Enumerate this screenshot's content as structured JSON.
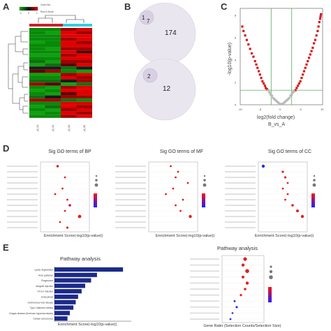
{
  "panels": {
    "A": "A",
    "B": "B",
    "C": "C",
    "D": "D",
    "E": "E"
  },
  "heatmap": {
    "legend_title": "Color Key",
    "legend_sub": "Row Z-Score",
    "legend_ticks": [
      "-1",
      "0",
      "1"
    ],
    "columns": [
      "p3_A1",
      "p3_A2",
      "p3_B1",
      "p3_B2"
    ]
  },
  "venn": {
    "top": {
      "a": "1",
      "b": "7",
      "c": "174"
    },
    "bottom": {
      "a": "2",
      "b": "12"
    }
  },
  "volcano": {
    "ylabel": "-log10(p-value)",
    "xlabel": "log2(fold change)",
    "subtitle": "B_vs_A",
    "xticks": [
      "-10",
      "-5",
      "0",
      "5",
      "10"
    ],
    "yticks": [
      "0",
      "2",
      "4",
      "6",
      "8"
    ]
  },
  "go": {
    "bp_title": "Sig GO terms of BP",
    "mf_title": "Sig GO terms of MF",
    "cc_title": "Sig GO terms of CC",
    "xlabel": "Enrichment Score(-log10(p-value))"
  },
  "pathway": {
    "left_title": "Pathway analysis",
    "right_title": "Pathway analysis",
    "left_xlabel": "Enrichment Score(-log10(p-value))",
    "right_xlabel": "Gene Ratio (Selection Counts/Selection Size)"
  },
  "colors": {
    "red": "#d7191c",
    "navy": "#1b2a8a",
    "grey": "#b8b8b8",
    "green": "#3aa04a",
    "cyan": "#2fd0e0",
    "lavender": "#eae6f0"
  },
  "chart_data": [
    {
      "type": "scatter",
      "title": "B_vs_A",
      "xlabel": "log2(fold change)",
      "ylabel": "-log10(p-value)",
      "xlim": [
        -10,
        10
      ],
      "ylim": [
        0,
        8
      ],
      "series": [
        {
          "x": [
            -9.5,
            -9.2,
            -8.8,
            -8.4,
            -8.0,
            -7.6,
            -7.2,
            -6.8,
            -6.4,
            -6.1,
            -5.8,
            -5.5,
            -5.2,
            -4.9,
            -4.6,
            -4.3,
            -4.0,
            -3.8,
            -3.5
          ],
          "y": [
            7.0,
            6.6,
            6.2,
            5.8,
            5.4,
            5.0,
            4.6,
            4.3,
            3.9,
            3.6,
            3.3,
            3.0,
            2.7,
            2.4,
            2.1,
            1.9,
            1.7,
            1.5,
            1.4
          ]
        },
        {
          "x": [
            3.4,
            3.7,
            4.0,
            4.3,
            4.6,
            4.9,
            5.2,
            5.5,
            5.8,
            6.1,
            6.4,
            6.7,
            7.0,
            7.3,
            7.6,
            7.9,
            8.2,
            8.5,
            8.8,
            9.0,
            9.2,
            9.4,
            9.5,
            9.6
          ],
          "y": [
            1.3,
            1.5,
            1.7,
            1.9,
            2.1,
            2.4,
            2.7,
            3.0,
            3.3,
            3.6,
            3.9,
            4.2,
            4.5,
            4.8,
            5.1,
            5.5,
            5.8,
            6.2,
            6.6,
            7.0,
            7.4,
            7.7,
            7.9,
            8.1
          ]
        },
        {
          "x": [
            -3.2,
            -2.9,
            -2.6,
            -2.3,
            -2.0,
            -1.7,
            -1.4,
            -1.1,
            -0.8,
            -0.5,
            -0.2,
            0.1,
            0.4,
            0.7,
            1.0,
            1.3,
            1.6,
            1.9,
            2.2,
            2.5,
            2.8,
            3.1
          ],
          "y": [
            1.3,
            1.1,
            0.9,
            0.8,
            0.6,
            0.5,
            0.4,
            0.3,
            0.2,
            0.1,
            0.05,
            0.05,
            0.1,
            0.2,
            0.3,
            0.4,
            0.5,
            0.6,
            0.8,
            0.9,
            1.1,
            1.2
          ]
        }
      ]
    },
    {
      "type": "bar",
      "title": "Pathway analysis",
      "xlabel": "Enrichment Score(-log10(p-value))",
      "categories": [
        "Lysine degradation",
        "Axon guidance",
        "Phagosome",
        "Allograft rejection",
        "HTLV-I infection",
        "Endocytosis",
        "Graft-versus-host disease",
        "Type I diabetes mellitus",
        "Chagas disease (American trypanosomiasis)",
        "Cellular senescence"
      ],
      "values": [
        5.8,
        3.6,
        3.1,
        2.6,
        2.3,
        2.0,
        1.8,
        1.6,
        1.3,
        1.1
      ],
      "xlim": [
        0,
        6.5
      ]
    }
  ]
}
